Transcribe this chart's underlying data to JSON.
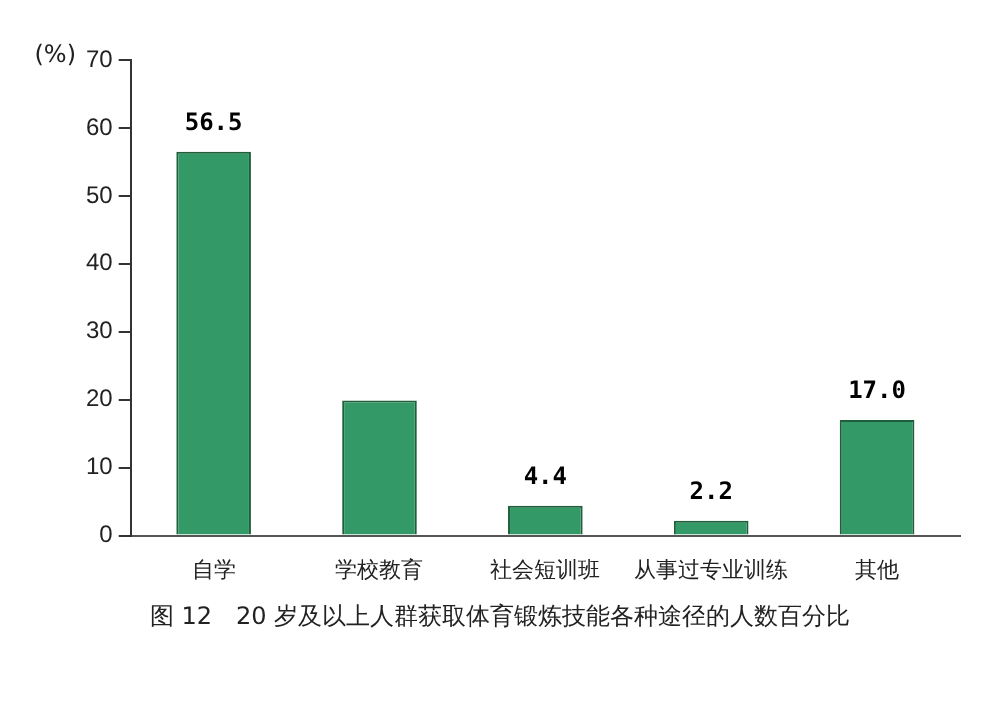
{
  "chart_data": {
    "type": "bar",
    "title": "图 12　20 岁及以上人群获取体育锻炼技能各种途径的人数百分比",
    "ylabel": "(%)",
    "categories": [
      "自学",
      "学校教育",
      "社会短训班",
      "从事过专业训练",
      "其他"
    ],
    "values": [
      56.5,
      19.9,
      4.4,
      2.2,
      17.0
    ],
    "color": "#339966",
    "value_labels": [
      "56.5",
      null,
      "4.4",
      "2.2",
      "17.0"
    ],
    "ylim": [
      0,
      70
    ],
    "yticks": [
      0,
      10,
      20,
      30,
      40,
      50,
      60,
      70
    ],
    "grid": false,
    "legend": false
  }
}
